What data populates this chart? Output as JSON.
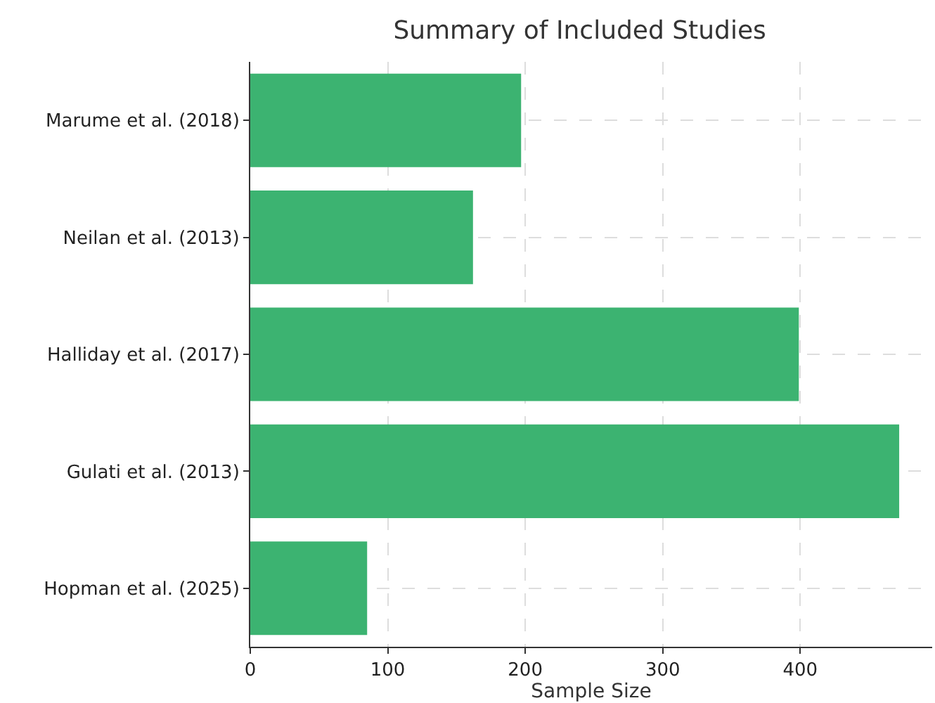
{
  "chart_data": {
    "type": "bar",
    "orientation": "horizontal",
    "title": "Summary of Included Studies",
    "xlabel": "Sample Size",
    "categories": [
      "Marume et al. (2018)",
      "Neilan et al. (2013)",
      "Halliday et al. (2017)",
      "Gulati et al. (2013)",
      "Hopman et al. (2025)"
    ],
    "values": [
      197,
      162,
      399,
      472,
      85
    ],
    "color": "#3cb371",
    "xlim": [
      0,
      496
    ],
    "xticks": [
      0,
      100,
      200,
      300,
      400
    ],
    "grid": true
  }
}
